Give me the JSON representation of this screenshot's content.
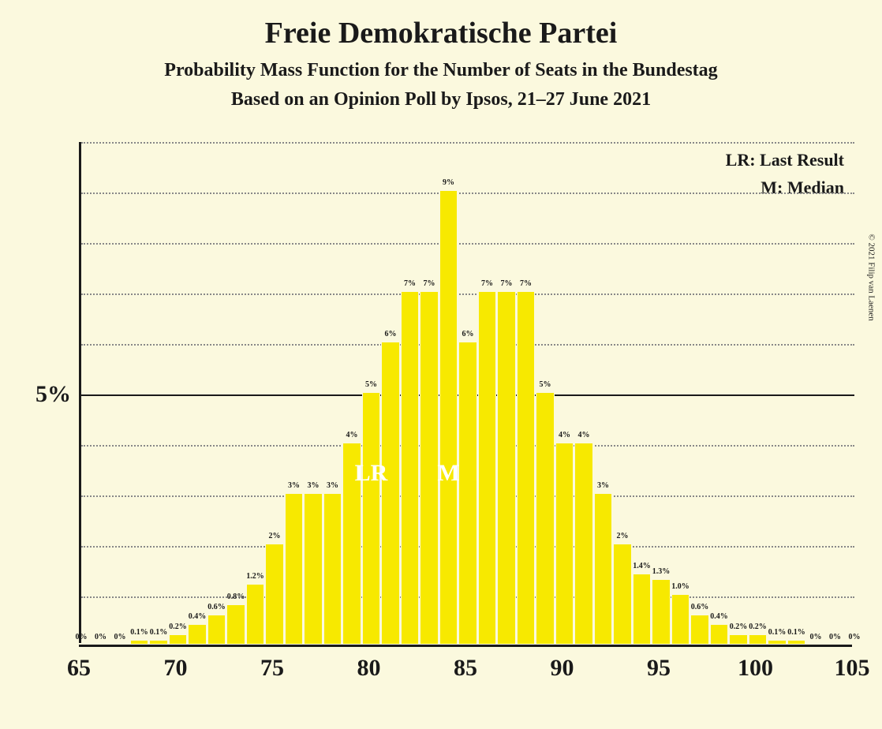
{
  "title": "Freie Demokratische Partei",
  "subtitle1": "Probability Mass Function for the Number of Seats in the Bundestag",
  "subtitle2": "Based on an Opinion Poll by Ipsos, 21–27 June 2021",
  "copyright": "© 2021 Filip van Laenen",
  "legend": {
    "lr": "LR: Last Result",
    "m": "M: Median"
  },
  "annotations": {
    "lr": {
      "label": "LR",
      "seat": 80
    },
    "m": {
      "label": "M",
      "seat": 84
    }
  },
  "chart": {
    "type": "bar",
    "background_color": "#fbf9de",
    "bar_color": "#f7e900",
    "axis_color": "#1a1a1a",
    "grid_color": "#888888",
    "text_color": "#1a1a1a",
    "annotation_color": "#ffffff",
    "title_fontsize": 38,
    "subtitle_fontsize": 24,
    "axis_label_fontsize": 30,
    "bar_label_fontsize": 10,
    "legend_fontsize": 22,
    "xlim": [
      65,
      105
    ],
    "ylim": [
      0,
      10
    ],
    "y_major_tick": 5,
    "y_minor_step": 1,
    "x_tick_step": 5,
    "y_axis_label": "5%",
    "x_ticks": [
      65,
      70,
      75,
      80,
      85,
      90,
      95,
      100,
      105
    ],
    "seats": [
      65,
      66,
      67,
      68,
      69,
      70,
      71,
      72,
      73,
      74,
      75,
      76,
      77,
      78,
      79,
      80,
      81,
      82,
      83,
      84,
      85,
      86,
      87,
      88,
      89,
      90,
      91,
      92,
      93,
      94,
      95,
      96,
      97,
      98,
      99,
      100,
      101,
      102,
      103,
      104,
      105
    ],
    "values": [
      0,
      0,
      0,
      0.1,
      0.1,
      0.2,
      0.4,
      0.6,
      0.8,
      1.2,
      2,
      3,
      3,
      3,
      4,
      5,
      6,
      7,
      7,
      9,
      6,
      7,
      7,
      7,
      5,
      4,
      4,
      3,
      2,
      1.4,
      1.3,
      1.0,
      0.6,
      0.4,
      0.2,
      0.2,
      0.1,
      0.1,
      0,
      0,
      0
    ],
    "value_labels": [
      "0%",
      "0%",
      "0%",
      "0.1%",
      "0.1%",
      "0.2%",
      "0.4%",
      "0.6%",
      "0.8%",
      "1.2%",
      "2%",
      "3%",
      "3%",
      "3%",
      "4%",
      "5%",
      "6%",
      "7%",
      "7%",
      "9%",
      "6%",
      "7%",
      "7%",
      "7%",
      "5%",
      "4%",
      "4%",
      "3%",
      "2%",
      "1.4%",
      "1.3%",
      "1.0%",
      "0.6%",
      "0.4%",
      "0.2%",
      "0.2%",
      "0.1%",
      "0.1%",
      "0%",
      "0%",
      "0%"
    ]
  }
}
